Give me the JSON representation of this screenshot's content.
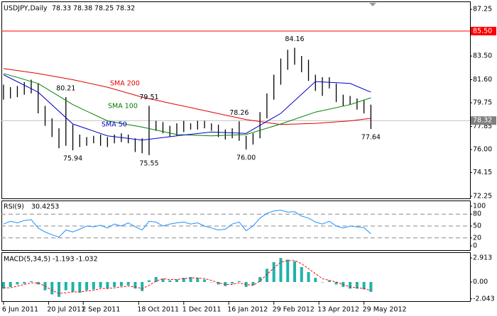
{
  "chart_data": [
    {
      "type": "ohlc",
      "title": "USDJPY,Daily",
      "ohlc": [
        78.33,
        78.38,
        78.25,
        78.32
      ],
      "color": "#000000",
      "xlim": [
        -0.3,
        67.3
      ],
      "xticks": [
        {
          "value": 0,
          "label": "6 Jun 2011"
        },
        {
          "value": 6.5,
          "label": "20 Jul 2011"
        },
        {
          "value": 11.5,
          "label": "2 Sep 2011"
        },
        {
          "value": 19.5,
          "label": "18 Oct 2011"
        },
        {
          "value": 26,
          "label": "1 Dec 2011"
        },
        {
          "value": 32.5,
          "label": "16 Jan 2012"
        },
        {
          "value": 39,
          "label": "29 Feb 2012"
        },
        {
          "value": 45.5,
          "label": "13 Apr 2012"
        },
        {
          "value": 52,
          "label": "29 May 2012"
        }
      ],
      "ylim": [
        72.08,
        87.88
      ],
      "yticks": [
        87.25,
        {
          "value": 83.5,
          "label": "83.50"
        },
        {
          "value": 81.6,
          "label": "81.60"
        },
        79.75,
        77.85,
        {
          "value": 76,
          "label": "76.00"
        },
        74.15,
        72.25
      ],
      "high": [
        81.2,
        81.0,
        81.1,
        81.4,
        81.6,
        81.3,
        79.5,
        78.5,
        77.7,
        80.21,
        78.0,
        77.2,
        77.0,
        77.1,
        77.2,
        77.0,
        77.2,
        77.3,
        77.2,
        76.9,
        76.9,
        79.51,
        78.3,
        78.2,
        77.9,
        78.1,
        78.3,
        78.1,
        78.3,
        78.3,
        78.1,
        78.0,
        77.6,
        77.7,
        78.26,
        77.1,
        77.3,
        79.0,
        80.5,
        82.0,
        83.3,
        84.0,
        84.16,
        83.5,
        83.2,
        82.0,
        81.8,
        81.8,
        81.3,
        80.4,
        80.3,
        80.1,
        80.0,
        79.6
      ],
      "low": [
        80.0,
        80.1,
        80.2,
        80.4,
        80.5,
        78.9,
        77.9,
        77.0,
        76.1,
        76.3,
        75.94,
        76.2,
        76.3,
        76.5,
        76.3,
        76.2,
        76.5,
        76.6,
        76.5,
        75.8,
        75.7,
        75.55,
        77.5,
        77.3,
        77.0,
        77.1,
        77.4,
        77.6,
        77.6,
        77.7,
        77.5,
        77.0,
        76.8,
        76.9,
        76.7,
        76,
        76.4,
        76.9,
        78.5,
        80.0,
        81.2,
        82.4,
        82.8,
        82.2,
        81.5,
        80.7,
        80.3,
        80.9,
        79.8,
        79.5,
        79.6,
        79.2,
        78.9,
        77.64
      ],
      "overlays": [
        {
          "name": "SMA 200",
          "color": "#e00000",
          "x": [
            0,
            5,
            10,
            15,
            20,
            25,
            30,
            35,
            40,
            45,
            50,
            53
          ],
          "values": [
            82.5,
            82.1,
            81.6,
            81.0,
            80.2,
            79.6,
            79.0,
            78.4,
            78.0,
            78.1,
            78.3,
            78.5
          ]
        },
        {
          "name": "SMA 100",
          "color": "#008000",
          "x": [
            0,
            5,
            10,
            15,
            20,
            25,
            30,
            35,
            40,
            45,
            50,
            53
          ],
          "values": [
            82.1,
            81.3,
            79.6,
            78.3,
            77.8,
            77.2,
            77.1,
            77.2,
            78.05,
            79.0,
            79.6,
            80.15
          ]
        },
        {
          "name": "SMA 50",
          "color": "#0000cc",
          "x": [
            0,
            5,
            10,
            15,
            20,
            25,
            30,
            35,
            40,
            45,
            50,
            53
          ],
          "values": [
            82.0,
            80.6,
            78.05,
            77.1,
            76.75,
            77.1,
            77.4,
            77.3,
            78.9,
            81.45,
            81.3,
            80.6
          ]
        }
      ],
      "hlines": [
        {
          "value": 85.5,
          "label": "85.50",
          "color": "#ff0000"
        }
      ],
      "current": {
        "value": 78.32,
        "label": "78.32",
        "color": "#808080"
      },
      "annotations": [
        {
          "x": 9,
          "value": 80.21
        },
        {
          "x": 10,
          "value": 75.94
        },
        {
          "x": 21,
          "value": 79.51
        },
        {
          "x": 21,
          "value": 75.55
        },
        {
          "x": 34,
          "value": 78.26
        },
        {
          "x": 35,
          "value": 76,
          "label": "76.00"
        },
        {
          "x": 42,
          "value": 84.16
        },
        {
          "x": 53,
          "value": 77.64
        }
      ]
    },
    {
      "type": "line",
      "title": "RSI(9)",
      "current": 30.4253,
      "color": "#1e90ff",
      "ylim": [
        -8.9,
        112.5
      ],
      "yticks": [
        100,
        80,
        50,
        20,
        0
      ],
      "levels": [
        80,
        50,
        20
      ],
      "values": [
        55,
        62,
        58,
        64,
        66,
        45,
        35,
        28,
        22,
        40,
        35,
        42,
        50,
        48,
        52,
        45,
        55,
        50,
        58,
        48,
        40,
        62,
        60,
        50,
        55,
        58,
        60,
        55,
        58,
        50,
        45,
        40,
        42,
        55,
        60,
        38,
        50,
        70,
        82,
        88,
        90,
        85,
        86,
        75,
        70,
        60,
        55,
        62,
        50,
        45,
        50,
        48,
        46,
        30.4253
      ]
    },
    {
      "type": "macd",
      "title": "MACD(5,34,5)",
      "current": [
        -1.193,
        -1.032
      ],
      "color": "#20b2aa",
      "signal_color": "#ff0000",
      "ylim": [
        -2.23,
        3.6
      ],
      "yticks": [
        2.913,
        {
          "value": 0,
          "label": "0.00"
        },
        -2.043
      ],
      "values": [
        -0.8,
        -0.6,
        -0.3,
        -0.2,
        0.1,
        -0.3,
        -1.0,
        -1.5,
        -1.8,
        -1.0,
        -1.2,
        -1.3,
        -1.0,
        -0.9,
        -0.7,
        -0.8,
        -0.6,
        -0.5,
        -0.4,
        -0.8,
        -1.1,
        0.2,
        0.6,
        0.4,
        0.2,
        0.3,
        0.5,
        0.6,
        0.5,
        0.3,
        0.0,
        -0.3,
        -0.5,
        -0.2,
        0.1,
        -0.6,
        -0.4,
        0.6,
        1.6,
        2.4,
        2.9,
        2.7,
        2.5,
        1.8,
        1.2,
        0.5,
        0.0,
        0.2,
        -0.3,
        -0.6,
        -0.8,
        -0.8,
        -0.9,
        -1.193
      ],
      "signal": [
        -0.7,
        -0.7,
        -0.5,
        -0.3,
        -0.1,
        -0.1,
        -0.5,
        -1.0,
        -1.4,
        -1.3,
        -1.2,
        -1.2,
        -1.1,
        -1.0,
        -0.8,
        -0.8,
        -0.7,
        -0.6,
        -0.5,
        -0.6,
        -0.8,
        -0.4,
        0.1,
        0.4,
        0.3,
        0.3,
        0.4,
        0.5,
        0.5,
        0.4,
        0.2,
        -0.1,
        -0.3,
        -0.3,
        -0.1,
        -0.3,
        -0.4,
        0.1,
        0.9,
        1.7,
        2.4,
        2.6,
        2.6,
        2.2,
        1.6,
        1.0,
        0.4,
        0.2,
        0.0,
        -0.3,
        -0.6,
        -0.7,
        -0.8,
        -1.032
      ]
    }
  ]
}
